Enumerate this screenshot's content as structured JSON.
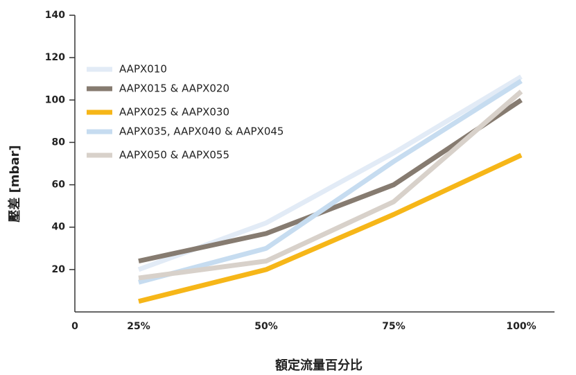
{
  "chart_data": {
    "type": "line",
    "x_label": "額定流量百分比",
    "y_label": "壓差 [mbar]",
    "categories": [
      "25%",
      "50%",
      "75%",
      "100%"
    ],
    "series": [
      {
        "name": "AAPX010",
        "color": "#e2ebf6",
        "values": [
          20,
          42,
          75,
          111
        ]
      },
      {
        "name": "AAPX015 & AAPX020",
        "color": "#867b70",
        "values": [
          24,
          37,
          60,
          100
        ]
      },
      {
        "name": "AAPX025 & AAPX030",
        "color": "#f6b618",
        "values": [
          5,
          20,
          46,
          74
        ]
      },
      {
        "name": "AAPX035, AAPX040 & AAPX045",
        "color": "#c6dcf0",
        "values": [
          14,
          30,
          71,
          109
        ]
      },
      {
        "name": "AAPX050 & AAPX055",
        "color": "#d8d1ca",
        "values": [
          16,
          24,
          52,
          104
        ]
      }
    ],
    "ylim": [
      0,
      140
    ],
    "yticks": [
      0,
      20,
      40,
      60,
      80,
      100,
      120,
      140
    ]
  }
}
